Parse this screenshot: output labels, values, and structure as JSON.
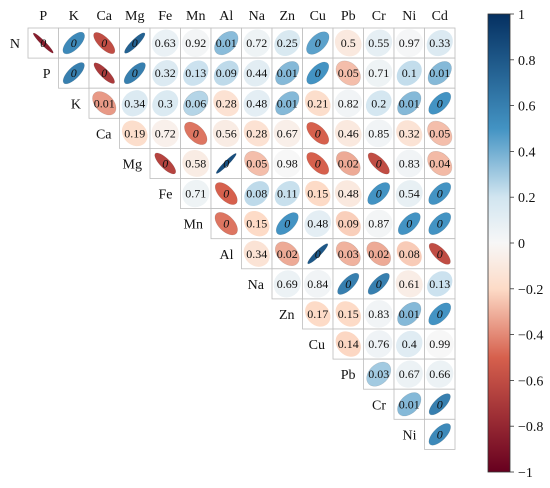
{
  "chart_data": {
    "type": "heatmap",
    "subtype": "correlation-matrix-upper",
    "variables": [
      "N",
      "P",
      "K",
      "Ca",
      "Mg",
      "Fe",
      "Mn",
      "Al",
      "Na",
      "Zn",
      "Cu",
      "Pb",
      "Cr",
      "Ni",
      "Cd"
    ],
    "column_labels": [
      "P",
      "K",
      "Ca",
      "Mg",
      "Fe",
      "Mn",
      "Al",
      "Na",
      "Zn",
      "Cu",
      "Pb",
      "Cr",
      "Ni",
      "Cd"
    ],
    "row_labels": [
      "N",
      "P",
      "K",
      "Ca",
      "Mg",
      "Fe",
      "Mn",
      "Al",
      "Na",
      "Zn",
      "Cu",
      "Pb",
      "Cr",
      "Ni"
    ],
    "cells": [
      {
        "row": "N",
        "col": "P",
        "r": -0.85,
        "p": "0"
      },
      {
        "row": "N",
        "col": "K",
        "r": 0.55,
        "p": "0"
      },
      {
        "row": "N",
        "col": "Ca",
        "r": -0.6,
        "p": "0"
      },
      {
        "row": "N",
        "col": "Mg",
        "r": 0.75,
        "p": "0"
      },
      {
        "row": "N",
        "col": "Fe",
        "r": 0.07,
        "p": "0.63"
      },
      {
        "row": "N",
        "col": "Mn",
        "r": 0.02,
        "p": "0.92"
      },
      {
        "row": "N",
        "col": "Al",
        "r": 0.35,
        "p": "0.01"
      },
      {
        "row": "N",
        "col": "Na",
        "r": 0.05,
        "p": "0.72"
      },
      {
        "row": "N",
        "col": "Zn",
        "r": 0.16,
        "p": "0.25"
      },
      {
        "row": "N",
        "col": "Cu",
        "r": 0.45,
        "p": "0"
      },
      {
        "row": "N",
        "col": "Pb",
        "r": -0.1,
        "p": "0.5"
      },
      {
        "row": "N",
        "col": "Cr",
        "r": 0.09,
        "p": "0.55"
      },
      {
        "row": "N",
        "col": "Ni",
        "r": 0.01,
        "p": "0.97"
      },
      {
        "row": "N",
        "col": "Cd",
        "r": 0.14,
        "p": "0.33"
      },
      {
        "row": "P",
        "col": "K",
        "r": 0.6,
        "p": "0"
      },
      {
        "row": "P",
        "col": "Ca",
        "r": -0.7,
        "p": "0"
      },
      {
        "row": "P",
        "col": "Mg",
        "r": 0.6,
        "p": "0"
      },
      {
        "row": "P",
        "col": "Fe",
        "r": 0.14,
        "p": "0.32"
      },
      {
        "row": "P",
        "col": "Mn",
        "r": 0.21,
        "p": "0.13"
      },
      {
        "row": "P",
        "col": "Al",
        "r": 0.24,
        "p": "0.09"
      },
      {
        "row": "P",
        "col": "Na",
        "r": 0.11,
        "p": "0.44"
      },
      {
        "row": "P",
        "col": "Zn",
        "r": 0.36,
        "p": "0.01"
      },
      {
        "row": "P",
        "col": "Cu",
        "r": 0.5,
        "p": "0"
      },
      {
        "row": "P",
        "col": "Pb",
        "r": -0.27,
        "p": "0.05"
      },
      {
        "row": "P",
        "col": "Cr",
        "r": 0.05,
        "p": "0.71"
      },
      {
        "row": "P",
        "col": "Ni",
        "r": 0.23,
        "p": "0.1"
      },
      {
        "row": "P",
        "col": "Cd",
        "r": 0.36,
        "p": "0.01"
      },
      {
        "row": "K",
        "col": "Ca",
        "r": -0.36,
        "p": "0.01"
      },
      {
        "row": "K",
        "col": "Mg",
        "r": 0.14,
        "p": "0.34"
      },
      {
        "row": "K",
        "col": "Fe",
        "r": 0.15,
        "p": "0.3"
      },
      {
        "row": "K",
        "col": "Mn",
        "r": 0.26,
        "p": "0.06"
      },
      {
        "row": "K",
        "col": "Al",
        "r": -0.15,
        "p": "0.28"
      },
      {
        "row": "K",
        "col": "Na",
        "r": 0.1,
        "p": "0.48"
      },
      {
        "row": "K",
        "col": "Zn",
        "r": 0.36,
        "p": "0.01"
      },
      {
        "row": "K",
        "col": "Cu",
        "r": -0.18,
        "p": "0.21"
      },
      {
        "row": "K",
        "col": "Pb",
        "r": 0.03,
        "p": "0.82"
      },
      {
        "row": "K",
        "col": "Cr",
        "r": 0.18,
        "p": "0.2"
      },
      {
        "row": "K",
        "col": "Ni",
        "r": 0.36,
        "p": "0.01"
      },
      {
        "row": "K",
        "col": "Cd",
        "r": 0.5,
        "p": "0"
      },
      {
        "row": "Ca",
        "col": "Mg",
        "r": -0.18,
        "p": "0.19"
      },
      {
        "row": "Ca",
        "col": "Fe",
        "r": -0.05,
        "p": "0.72"
      },
      {
        "row": "Ca",
        "col": "Mn",
        "r": -0.45,
        "p": "0"
      },
      {
        "row": "Ca",
        "col": "Al",
        "r": -0.08,
        "p": "0.56"
      },
      {
        "row": "Ca",
        "col": "Na",
        "r": -0.15,
        "p": "0.28"
      },
      {
        "row": "Ca",
        "col": "Zn",
        "r": -0.06,
        "p": "0.67"
      },
      {
        "row": "Ca",
        "col": "Cu",
        "r": -0.5,
        "p": "0"
      },
      {
        "row": "Ca",
        "col": "Pb",
        "r": -0.1,
        "p": "0.46"
      },
      {
        "row": "Ca",
        "col": "Cr",
        "r": 0.03,
        "p": "0.85"
      },
      {
        "row": "Ca",
        "col": "Ni",
        "r": -0.14,
        "p": "0.32"
      },
      {
        "row": "Ca",
        "col": "Cd",
        "r": -0.27,
        "p": "0.05"
      },
      {
        "row": "Mg",
        "col": "Fe",
        "r": -0.65,
        "p": "0"
      },
      {
        "row": "Mg",
        "col": "Mn",
        "r": -0.08,
        "p": "0.58"
      },
      {
        "row": "Mg",
        "col": "Al",
        "r": 0.85,
        "p": "0"
      },
      {
        "row": "Mg",
        "col": "Na",
        "r": -0.27,
        "p": "0.05"
      },
      {
        "row": "Mg",
        "col": "Zn",
        "r": 0.0,
        "p": "0.98"
      },
      {
        "row": "Mg",
        "col": "Cu",
        "r": -0.5,
        "p": "0"
      },
      {
        "row": "Mg",
        "col": "Pb",
        "r": -0.32,
        "p": "0.02"
      },
      {
        "row": "Mg",
        "col": "Cr",
        "r": -0.6,
        "p": "0"
      },
      {
        "row": "Mg",
        "col": "Ni",
        "r": 0.03,
        "p": "0.83"
      },
      {
        "row": "Mg",
        "col": "Cd",
        "r": -0.28,
        "p": "0.04"
      },
      {
        "row": "Fe",
        "col": "Mn",
        "r": 0.05,
        "p": "0.71"
      },
      {
        "row": "Fe",
        "col": "Al",
        "r": -0.5,
        "p": "0"
      },
      {
        "row": "Fe",
        "col": "Na",
        "r": 0.24,
        "p": "0.08"
      },
      {
        "row": "Fe",
        "col": "Zn",
        "r": 0.22,
        "p": "0.11"
      },
      {
        "row": "Fe",
        "col": "Cu",
        "r": -0.2,
        "p": "0.15"
      },
      {
        "row": "Fe",
        "col": "Pb",
        "r": -0.1,
        "p": "0.48"
      },
      {
        "row": "Fe",
        "col": "Cr",
        "r": 0.5,
        "p": "0"
      },
      {
        "row": "Fe",
        "col": "Ni",
        "r": 0.08,
        "p": "0.54"
      },
      {
        "row": "Fe",
        "col": "Cd",
        "r": 0.5,
        "p": "0"
      },
      {
        "row": "Mn",
        "col": "Al",
        "r": -0.45,
        "p": "0"
      },
      {
        "row": "Mn",
        "col": "Na",
        "r": -0.2,
        "p": "0.15"
      },
      {
        "row": "Mn",
        "col": "Zn",
        "r": 0.5,
        "p": "0"
      },
      {
        "row": "Mn",
        "col": "Cu",
        "r": 0.1,
        "p": "0.48"
      },
      {
        "row": "Mn",
        "col": "Pb",
        "r": -0.23,
        "p": "0.09"
      },
      {
        "row": "Mn",
        "col": "Cr",
        "r": 0.02,
        "p": "0.87"
      },
      {
        "row": "Mn",
        "col": "Ni",
        "r": 0.5,
        "p": "0"
      },
      {
        "row": "Mn",
        "col": "Cd",
        "r": 0.5,
        "p": "0"
      },
      {
        "row": "Al",
        "col": "Na",
        "r": -0.14,
        "p": "0.34"
      },
      {
        "row": "Al",
        "col": "Zn",
        "r": -0.32,
        "p": "0.02"
      },
      {
        "row": "Al",
        "col": "Cu",
        "r": 0.8,
        "p": "0"
      },
      {
        "row": "Al",
        "col": "Pb",
        "r": -0.3,
        "p": "0.03"
      },
      {
        "row": "Al",
        "col": "Cr",
        "r": -0.32,
        "p": "0.02"
      },
      {
        "row": "Al",
        "col": "Ni",
        "r": -0.24,
        "p": "0.08"
      },
      {
        "row": "Al",
        "col": "Cd",
        "r": -0.6,
        "p": "0"
      },
      {
        "row": "Na",
        "col": "Zn",
        "r": 0.06,
        "p": "0.69"
      },
      {
        "row": "Na",
        "col": "Cu",
        "r": 0.03,
        "p": "0.84"
      },
      {
        "row": "Na",
        "col": "Pb",
        "r": 0.6,
        "p": "0"
      },
      {
        "row": "Na",
        "col": "Cr",
        "r": 0.6,
        "p": "0"
      },
      {
        "row": "Na",
        "col": "Ni",
        "r": -0.07,
        "p": "0.61"
      },
      {
        "row": "Na",
        "col": "Cd",
        "r": 0.21,
        "p": "0.13"
      },
      {
        "row": "Zn",
        "col": "Cu",
        "r": -0.2,
        "p": "0.17"
      },
      {
        "row": "Zn",
        "col": "Pb",
        "r": -0.2,
        "p": "0.15"
      },
      {
        "row": "Zn",
        "col": "Cr",
        "r": 0.03,
        "p": "0.83"
      },
      {
        "row": "Zn",
        "col": "Ni",
        "r": 0.36,
        "p": "0.01"
      },
      {
        "row": "Zn",
        "col": "Cd",
        "r": 0.5,
        "p": "0"
      },
      {
        "row": "Cu",
        "col": "Pb",
        "r": -0.21,
        "p": "0.14"
      },
      {
        "row": "Cu",
        "col": "Cr",
        "r": 0.04,
        "p": "0.76"
      },
      {
        "row": "Cu",
        "col": "Ni",
        "r": 0.12,
        "p": "0.4"
      },
      {
        "row": "Cu",
        "col": "Cd",
        "r": 0.0,
        "p": "0.99"
      },
      {
        "row": "Pb",
        "col": "Cr",
        "r": 0.3,
        "p": "0.03"
      },
      {
        "row": "Pb",
        "col": "Ni",
        "r": 0.06,
        "p": "0.67"
      },
      {
        "row": "Pb",
        "col": "Cd",
        "r": 0.06,
        "p": "0.66"
      },
      {
        "row": "Cr",
        "col": "Ni",
        "r": 0.36,
        "p": "0.01"
      },
      {
        "row": "Cr",
        "col": "Cd",
        "r": 0.6,
        "p": "0"
      },
      {
        "row": "Ni",
        "col": "Cd",
        "r": 0.55,
        "p": "0"
      }
    ],
    "colorbar": {
      "range": [
        -1,
        1
      ],
      "ticks": [
        "1",
        "0.8",
        "0.6",
        "0.4",
        "0.2",
        "0",
        "−0.2",
        "−0.4",
        "−0.6",
        "−0.8",
        "−1"
      ],
      "colors": {
        "neg_strong": "#67001f",
        "neg_mid": "#d6604d",
        "neg_light": "#fddbc7",
        "zero": "#f7f7f7",
        "pos_light": "#d1e5f0",
        "pos_mid": "#4393c3",
        "pos_strong": "#053061"
      }
    }
  }
}
